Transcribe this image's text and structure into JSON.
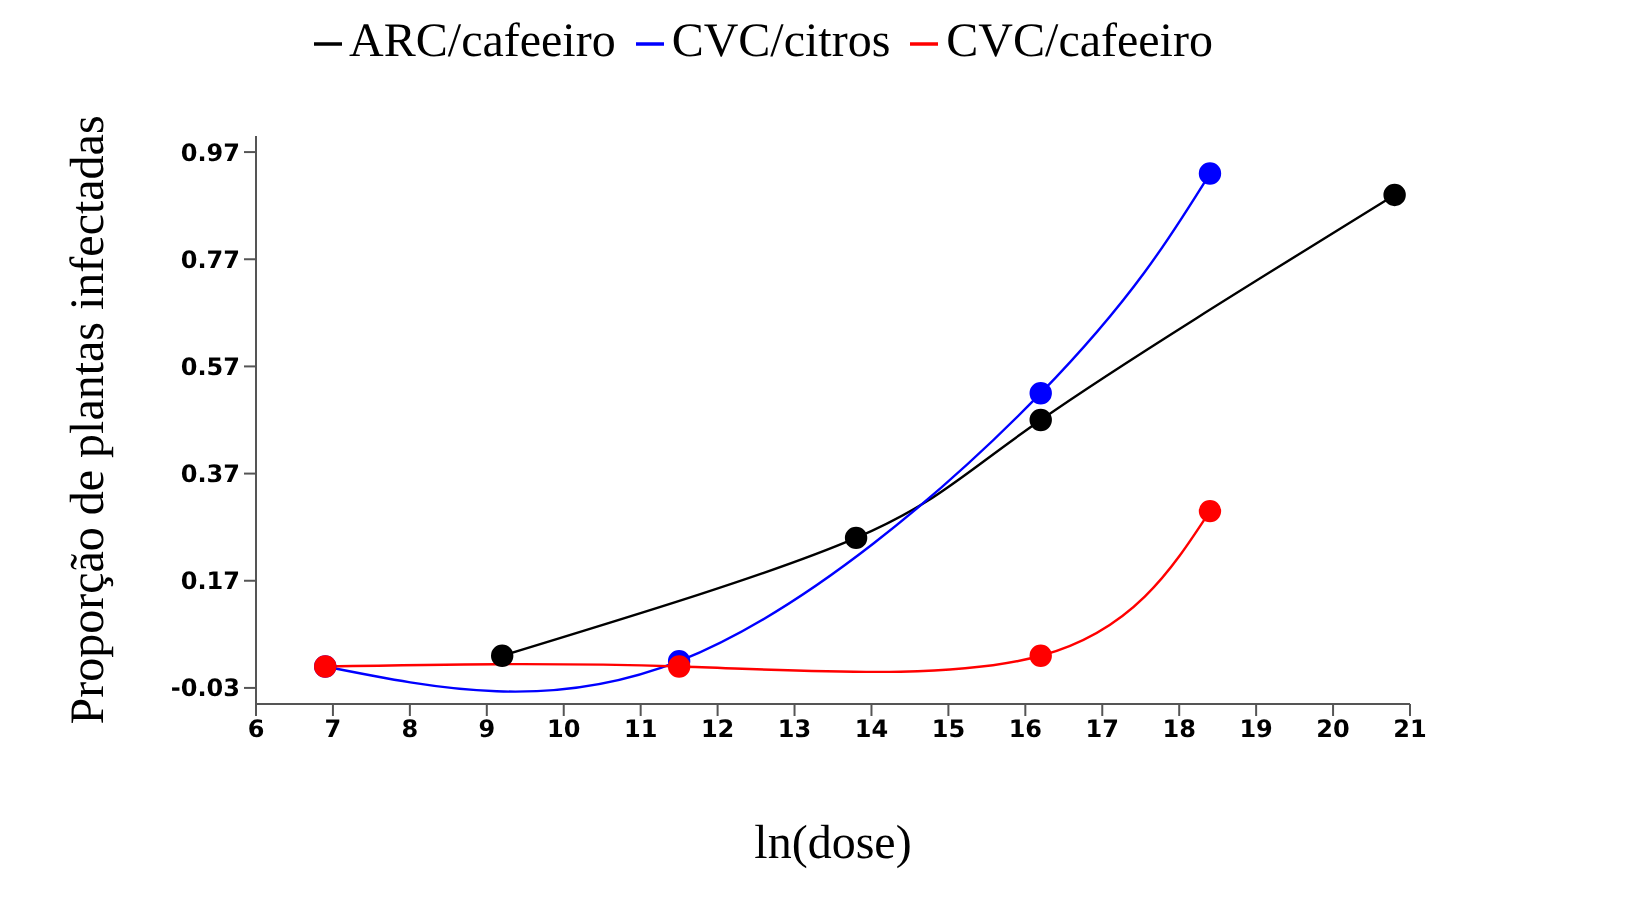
{
  "chart_data": {
    "type": "line",
    "xlabel": "ln(dose)",
    "ylabel": "Proporção de plantas infectadas",
    "legend": "top",
    "marker": "circle",
    "xlim": [
      6,
      21
    ],
    "xticks": [
      6,
      7,
      8,
      9,
      10,
      11,
      12,
      13,
      14,
      15,
      16,
      17,
      18,
      19,
      20,
      21
    ],
    "ylim": [
      -0.06,
      1.0
    ],
    "yticks": [
      -0.03,
      0.17,
      0.37,
      0.57,
      0.77,
      0.97
    ],
    "grid": false,
    "series": [
      {
        "name": "ARC/cafeeiro",
        "color": "#000000",
        "x": [
          9.2,
          13.8,
          16.2,
          20.8
        ],
        "values": [
          0.03,
          0.25,
          0.47,
          0.89
        ]
      },
      {
        "name": "CVC/citros",
        "color": "#0000ff",
        "x": [
          6.9,
          11.5,
          16.2,
          18.4
        ],
        "values": [
          0.01,
          0.02,
          0.52,
          0.93
        ]
      },
      {
        "name": "CVC/cafeeiro",
        "color": "#ff0000",
        "x": [
          6.9,
          11.5,
          16.2,
          18.4
        ],
        "values": [
          0.01,
          0.01,
          0.03,
          0.3
        ]
      }
    ]
  }
}
